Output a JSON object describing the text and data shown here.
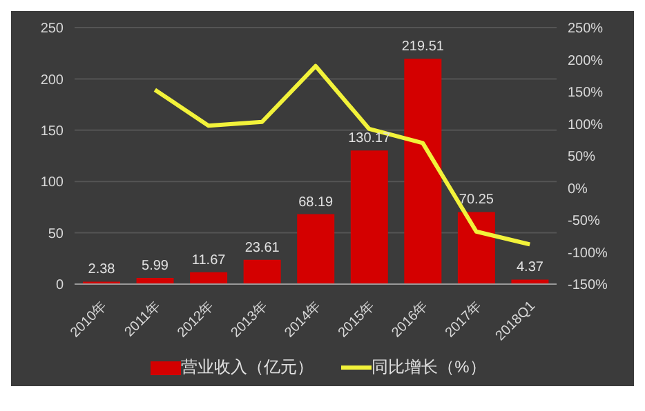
{
  "chart_data": {
    "type": "bar",
    "categories": [
      "2010年",
      "2011年",
      "2012年",
      "2013年",
      "2014年",
      "2015年",
      "2016年",
      "2017年",
      "2018Q1"
    ],
    "series": [
      {
        "name": "营业收入（亿元）",
        "color": "#d40000",
        "values": [
          2.38,
          5.99,
          11.67,
          23.61,
          68.19,
          130.17,
          219.51,
          70.25,
          4.37
        ],
        "value_labels": [
          "2.38",
          "5.99",
          "11.67",
          "23.61",
          "68.19",
          "130.17",
          "219.51",
          "70.25",
          "4.37"
        ]
      },
      {
        "name": "同比增长（%）",
        "type": "line",
        "axis": "y2",
        "color": "#f2f23a",
        "values": [
          null,
          153,
          97,
          103,
          190,
          92,
          70,
          -68,
          -88
        ]
      }
    ],
    "ylim": [
      0,
      250
    ],
    "yticks": [
      0,
      50,
      100,
      150,
      200,
      250
    ],
    "y2lim": [
      -150,
      250
    ],
    "y2ticks": [
      {
        "value": -150,
        "label": "-150%"
      },
      {
        "value": -100,
        "label": "-100%"
      },
      {
        "value": -50,
        "label": "-50%"
      },
      {
        "value": 0,
        "label": "0%"
      },
      {
        "value": 50,
        "label": "50%"
      },
      {
        "value": 100,
        "label": "100%"
      },
      {
        "value": 150,
        "label": "150%"
      },
      {
        "value": 200,
        "label": "200%"
      },
      {
        "value": 250,
        "label": "250%"
      }
    ],
    "grid": "y",
    "legend": "bottom",
    "marker": "none"
  }
}
